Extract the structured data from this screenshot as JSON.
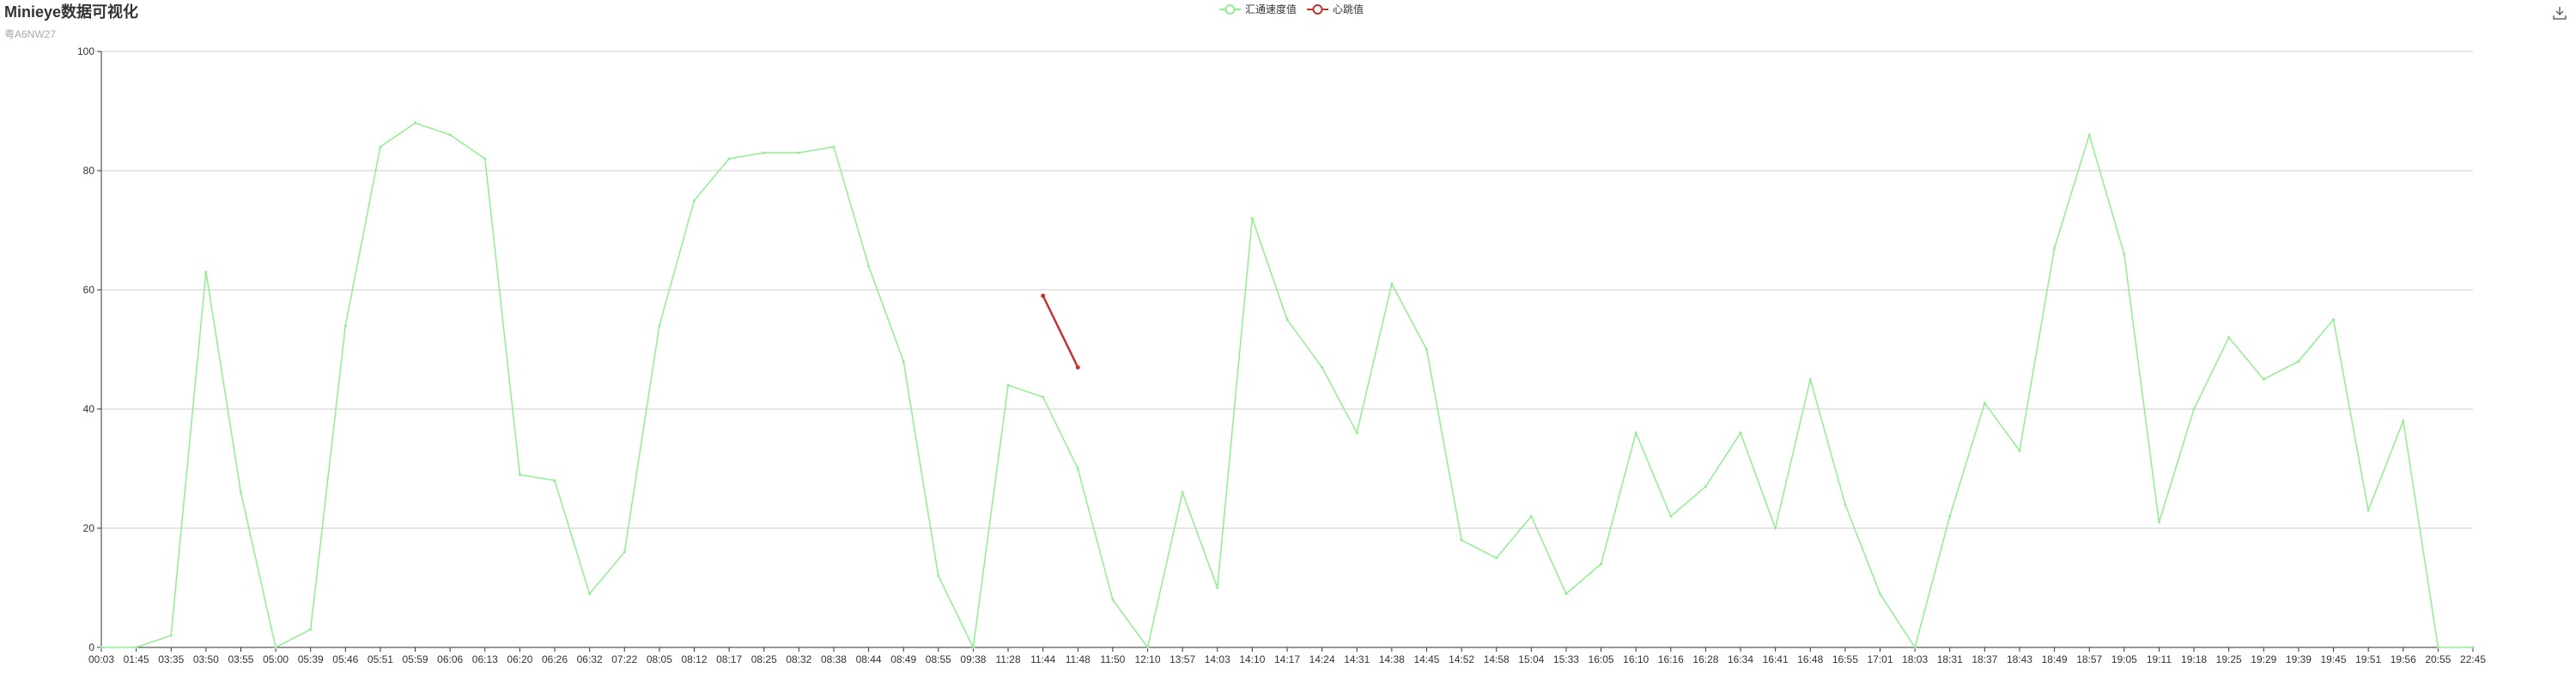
{
  "title": "Minieye数据可视化",
  "subtitle": "粤A6NW27",
  "toolbox": {
    "icon": "download-icon"
  },
  "colors": {
    "speed": "#90ee90",
    "heartbeat": "#c23531",
    "axis": "#333333",
    "grid": "#cccccc"
  },
  "chart_data": {
    "type": "line",
    "title": "Minieye数据可视化",
    "subtitle": "粤A6NW27",
    "ylim": [
      0,
      100
    ],
    "yticks": [
      0,
      20,
      40,
      60,
      80,
      100
    ],
    "grid": true,
    "legend_position": "top-center",
    "categories": [
      "00:03",
      "01:45",
      "03:35",
      "03:50",
      "03:55",
      "05:00",
      "05:39",
      "05:46",
      "05:51",
      "05:59",
      "06:06",
      "06:13",
      "06:20",
      "06:26",
      "06:32",
      "07:22",
      "08:05",
      "08:12",
      "08:17",
      "08:25",
      "08:32",
      "08:38",
      "08:44",
      "08:49",
      "08:55",
      "09:38",
      "11:28",
      "11:44",
      "11:48",
      "11:50",
      "12:10",
      "13:57",
      "14:03",
      "14:10",
      "14:17",
      "14:24",
      "14:31",
      "14:38",
      "14:45",
      "14:52",
      "14:58",
      "15:04",
      "15:33",
      "16:05",
      "16:10",
      "16:16",
      "16:28",
      "16:34",
      "16:41",
      "16:48",
      "16:55",
      "17:01",
      "18:03",
      "18:31",
      "18:37",
      "18:43",
      "18:49",
      "18:57",
      "19:05",
      "19:11",
      "19:18",
      "19:25",
      "19:29",
      "19:39",
      "19:45",
      "19:51",
      "19:56",
      "20:55",
      "22:45"
    ],
    "series": [
      {
        "name": "汇通速度值",
        "color": "#90ee90",
        "values": [
          0,
          0,
          2,
          63,
          26,
          0,
          3,
          54,
          84,
          88,
          86,
          82,
          29,
          28,
          9,
          16,
          54,
          75,
          82,
          83,
          83,
          84,
          64,
          48,
          12,
          0,
          44,
          42,
          30,
          8,
          0,
          26,
          10,
          72,
          55,
          47,
          36,
          61,
          50,
          18,
          15,
          22,
          9,
          14,
          36,
          22,
          27,
          36,
          20,
          45,
          24,
          9,
          0,
          22,
          41,
          33,
          67,
          86,
          66,
          21,
          40,
          52,
          45,
          48,
          55,
          23,
          38,
          0,
          0
        ]
      },
      {
        "name": "心跳值",
        "color": "#c23531",
        "values": [
          null,
          null,
          null,
          null,
          null,
          null,
          null,
          null,
          null,
          null,
          null,
          null,
          null,
          null,
          null,
          null,
          null,
          null,
          null,
          null,
          null,
          null,
          null,
          null,
          null,
          null,
          null,
          59,
          47,
          null,
          null,
          null,
          null,
          null,
          null,
          null,
          null,
          null,
          null,
          null,
          null,
          null,
          null,
          null,
          null,
          null,
          null,
          null,
          null,
          null,
          null,
          null,
          null,
          null,
          null,
          null,
          null,
          null,
          null,
          null,
          null,
          null,
          null,
          null,
          null,
          null,
          null,
          null,
          null
        ]
      }
    ]
  }
}
